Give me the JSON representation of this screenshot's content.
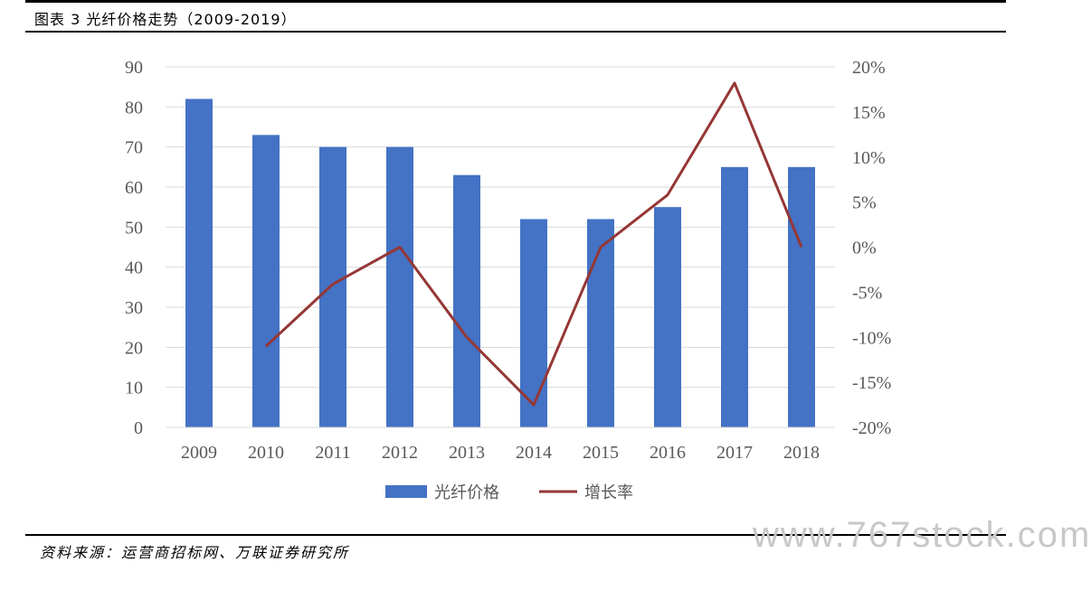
{
  "header": {
    "title": "图表 3 光纤价格走势（2009-2019）"
  },
  "chart_data": {
    "type": "bar",
    "categories": [
      "2009",
      "2010",
      "2011",
      "2012",
      "2013",
      "2014",
      "2015",
      "2016",
      "2017",
      "2018"
    ],
    "series": [
      {
        "name": "光纤价格",
        "type": "bar",
        "axis": "left",
        "values": [
          82,
          73,
          70,
          70,
          63,
          52,
          52,
          55,
          65,
          65
        ]
      },
      {
        "name": "增长率",
        "type": "line",
        "axis": "right",
        "values": [
          null,
          -11.0,
          -4.1,
          0.0,
          -10.0,
          -17.5,
          0.0,
          5.8,
          18.2,
          0.0
        ]
      }
    ],
    "ylim_left": [
      0,
      90
    ],
    "ylim_right": [
      -20,
      20
    ],
    "yticks_left": [
      "0",
      "10",
      "20",
      "30",
      "40",
      "50",
      "60",
      "70",
      "80",
      "90"
    ],
    "yticks_right": [
      "-20%",
      "-15%",
      "-10%",
      "-5%",
      "0%",
      "5%",
      "10%",
      "15%",
      "20%"
    ],
    "colors": {
      "bar": "#4472C4",
      "line": "#953735",
      "grid": "#D9D9D9",
      "axis_text": "#595959"
    },
    "grid": true,
    "legend_position": "bottom"
  },
  "footer": {
    "source": "资料来源：运营商招标网、万联证券研究所"
  },
  "watermark": "www.767stock.com"
}
